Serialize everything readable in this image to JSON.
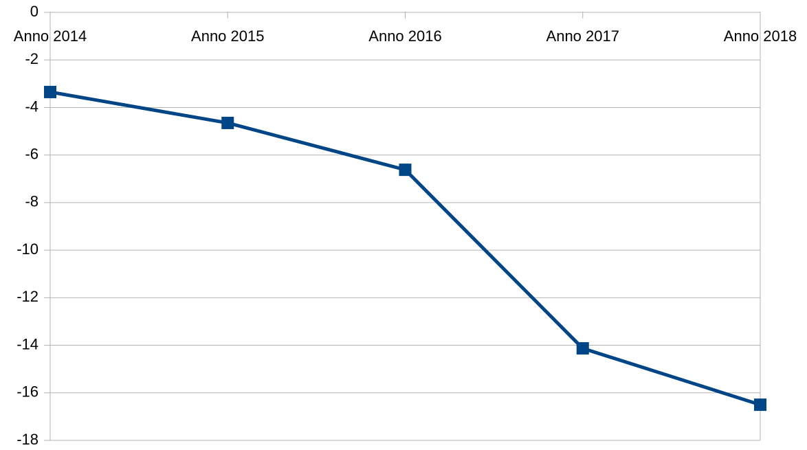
{
  "chart_data": {
    "type": "line",
    "categories": [
      "Anno 2014",
      "Anno 2015",
      "Anno 2016",
      "Anno 2017",
      "Anno 2018"
    ],
    "series": [
      {
        "name": null,
        "color": "#004586",
        "values": [
          -3.35,
          -4.65,
          -6.62,
          -14.13,
          -16.5
        ]
      }
    ],
    "ylim": [
      -18,
      0
    ],
    "yticks": [
      0,
      -2,
      -4,
      -6,
      -8,
      -10,
      -12,
      -14,
      -16,
      -18
    ],
    "grid": true
  }
}
